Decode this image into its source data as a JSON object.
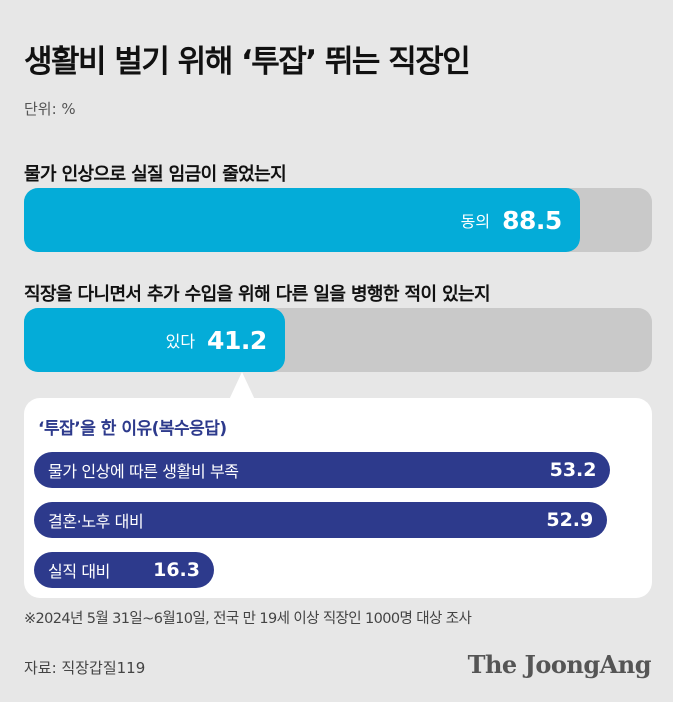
{
  "title": "생활비 벌기 위해 ‘투잡’ 뛰는 직장인",
  "unit": "단위: %",
  "chart_data": [
    {
      "type": "bar",
      "question": "물가 인상으로 실질 임금이 줄었는지",
      "categories": [
        "동의"
      ],
      "values": [
        88.5
      ],
      "ylim": [
        0,
        100
      ]
    },
    {
      "type": "bar",
      "question": "직장을 다니면서 추가 수입을 위해 다른 일을 병행한 적이 있는지",
      "categories": [
        "있다"
      ],
      "values": [
        41.2
      ],
      "ylim": [
        0,
        100
      ]
    },
    {
      "type": "bar",
      "title": "‘투잡’을 한 이유(복수응답)",
      "categories": [
        "물가 인상에 따른 생활비 부족",
        "결혼·노후 대비",
        "실직 대비"
      ],
      "values": [
        53.2,
        52.9,
        16.3
      ],
      "ylim": [
        0,
        55
      ]
    }
  ],
  "note": "※2024년 5월 31일~6월10일, 전국 만 19세 이상 직장인 1000명 대상 조사",
  "source": "자료: 직장갑질119",
  "logo": "The JoongAng",
  "colors": {
    "cyan": "#04acd8",
    "navy": "#2d3a8c",
    "track": "#c9c9c9"
  }
}
